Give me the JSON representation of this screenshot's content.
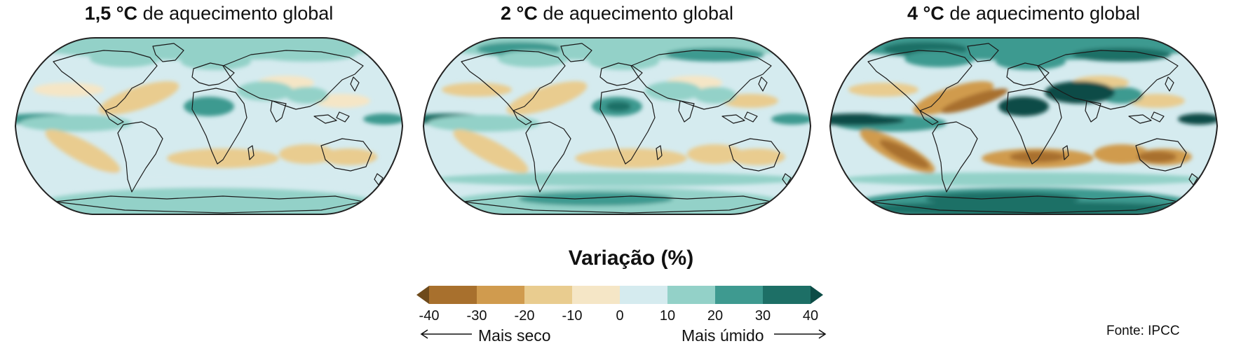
{
  "panels": [
    {
      "temp": "1,5 °C",
      "suffix": " de aquecimento global",
      "intensity": 0.55
    },
    {
      "temp": "2 °C",
      "suffix": " de aquecimento global",
      "intensity": 0.75
    },
    {
      "temp": "4 °C",
      "suffix": " de aquecimento global",
      "intensity": 1.3
    }
  ],
  "legend": {
    "title": "Variação (%)",
    "ticks": [
      "-40",
      "-30",
      "-20",
      "-10",
      "0",
      "10",
      "20",
      "30",
      "40"
    ],
    "colors": [
      "#6e4a1b",
      "#a8702d",
      "#d09b4e",
      "#e9cc8f",
      "#f5e6c6",
      "#d5ebef",
      "#93d1c8",
      "#3e9a90",
      "#1d6f66",
      "#0c4c46"
    ],
    "drier_label": "Mais seco",
    "wetter_label": "Mais úmido"
  },
  "source": "Fonte: IPCC"
}
